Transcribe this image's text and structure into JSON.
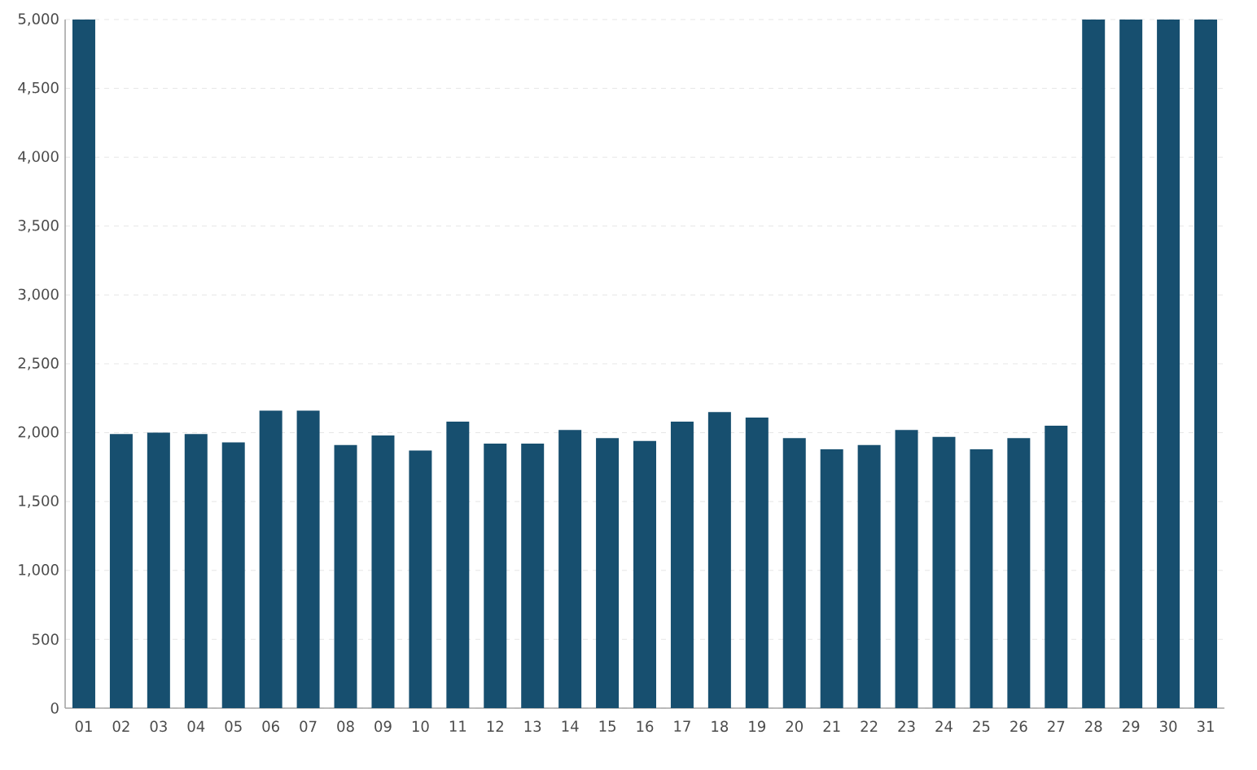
{
  "chart_data": {
    "type": "bar",
    "categories": [
      "01",
      "02",
      "03",
      "04",
      "05",
      "06",
      "07",
      "08",
      "09",
      "10",
      "11",
      "12",
      "13",
      "14",
      "15",
      "16",
      "17",
      "18",
      "19",
      "20",
      "21",
      "22",
      "23",
      "24",
      "25",
      "26",
      "27",
      "28",
      "29",
      "30",
      "31"
    ],
    "values": [
      5000,
      1990,
      2000,
      1990,
      1930,
      2160,
      2160,
      1910,
      1980,
      1870,
      2080,
      1920,
      1920,
      2020,
      1960,
      1940,
      2080,
      2150,
      2110,
      1960,
      1880,
      1910,
      2020,
      1970,
      1880,
      1960,
      2050,
      5000,
      5000,
      5000,
      5000
    ],
    "color": "#174f6f",
    "ylim": [
      0,
      5000
    ],
    "yticks": [
      {
        "value": 0,
        "label": "0"
      },
      {
        "value": 500,
        "label": "500"
      },
      {
        "value": 1000,
        "label": "1,000"
      },
      {
        "value": 1500,
        "label": "1,500"
      },
      {
        "value": 2000,
        "label": "2,000"
      },
      {
        "value": 2500,
        "label": "2,500"
      },
      {
        "value": 3000,
        "label": "3,000"
      },
      {
        "value": 3500,
        "label": "3,500"
      },
      {
        "value": 4000,
        "label": "4,000"
      },
      {
        "value": 4500,
        "label": "4,500"
      },
      {
        "value": 5000,
        "label": "5,000"
      }
    ],
    "grid": "y"
  }
}
